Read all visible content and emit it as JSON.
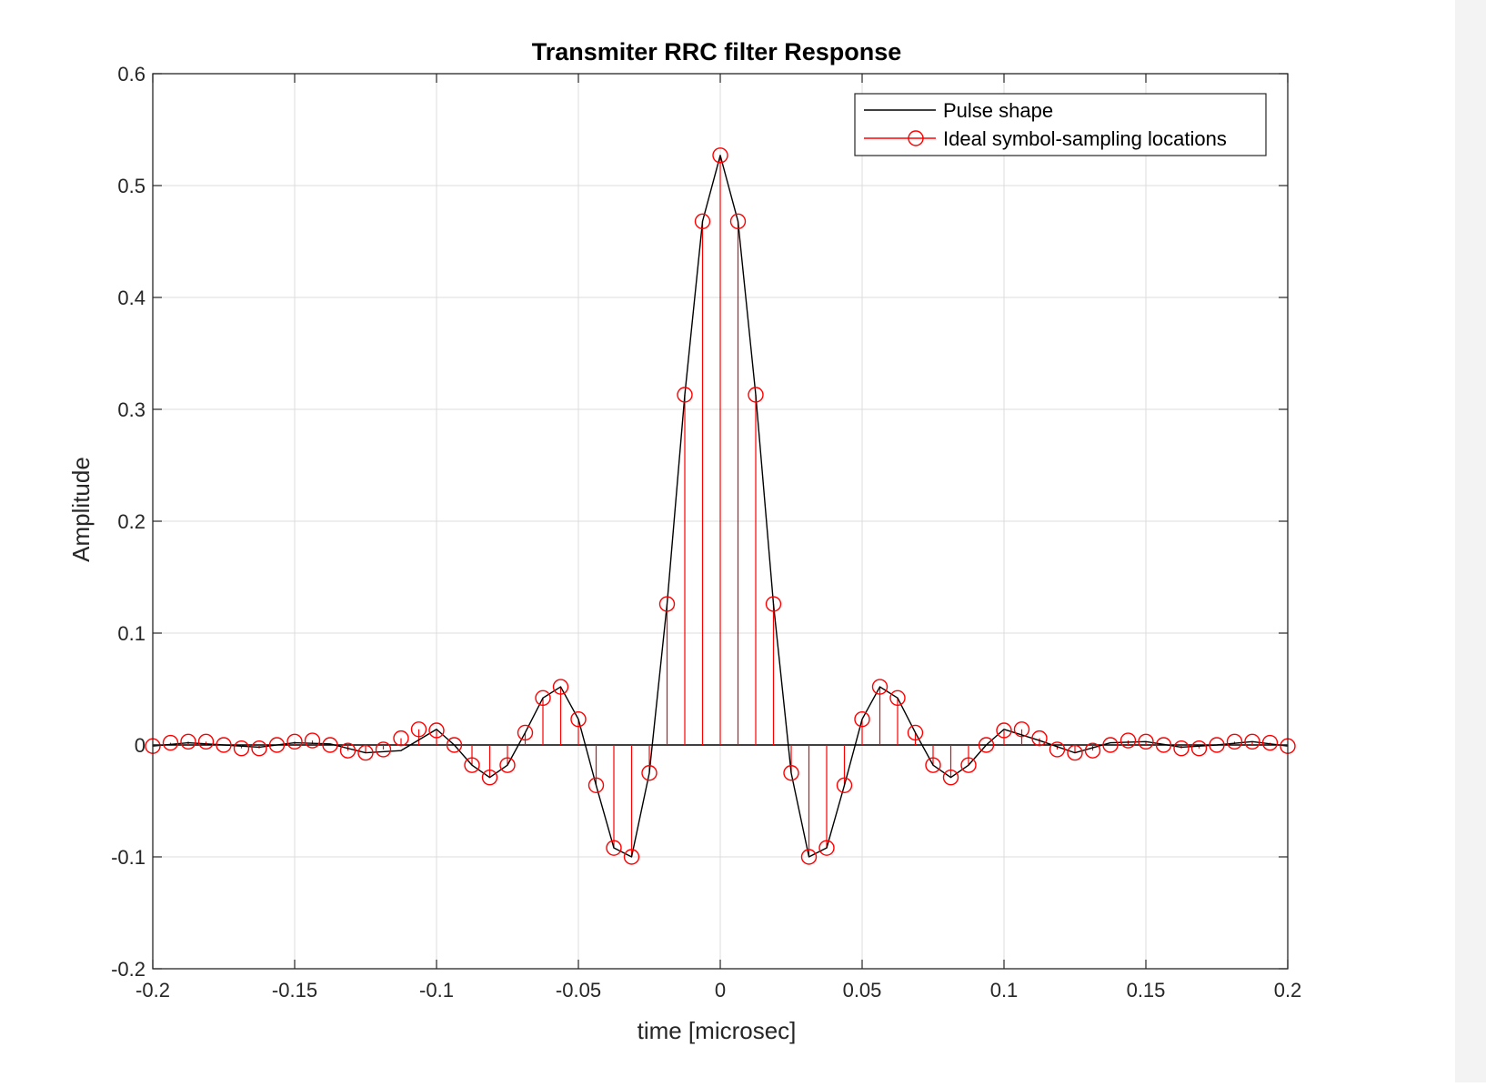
{
  "chart_data": {
    "type": "line",
    "title": "Transmiter RRC filter Response",
    "xlabel": "time [microsec]",
    "ylabel": "Amplitude",
    "xlim": [
      -0.2,
      0.2
    ],
    "ylim": [
      -0.2,
      0.6
    ],
    "xticks": [
      -0.2,
      -0.15,
      -0.1,
      -0.05,
      0,
      0.05,
      0.1,
      0.15,
      0.2
    ],
    "xtick_labels": [
      "-0.2",
      "-0.15",
      "-0.1",
      "-0.05",
      "0",
      "0.05",
      "0.1",
      "0.15",
      "0.2"
    ],
    "yticks": [
      -0.2,
      -0.1,
      0,
      0.1,
      0.2,
      0.3,
      0.4,
      0.5,
      0.6
    ],
    "ytick_labels": [
      "-0.2",
      "-0.1",
      "0",
      "0.1",
      "0.2",
      "0.3",
      "0.4",
      "0.5",
      "0.6"
    ],
    "grid": true,
    "legend_position": "top-right",
    "colors": {
      "pulse": "#000000",
      "samples": "#ff0000",
      "grid": "#dcdcdc",
      "axis": "#262626"
    },
    "series": [
      {
        "name": "Pulse shape",
        "style": "line",
        "x": [
          -0.2,
          -0.1875,
          -0.175,
          -0.1625,
          -0.15,
          -0.1375,
          -0.125,
          -0.1125,
          -0.1,
          -0.09375,
          -0.0875,
          -0.08125,
          -0.075,
          -0.06875,
          -0.0625,
          -0.05625,
          -0.05,
          -0.04375,
          -0.0375,
          -0.03125,
          -0.025,
          -0.01875,
          -0.0125,
          -0.00625,
          0,
          0.00625,
          0.0125,
          0.01875,
          0.025,
          0.03125,
          0.0375,
          0.04375,
          0.05,
          0.05625,
          0.0625,
          0.06875,
          0.075,
          0.08125,
          0.0875,
          0.09375,
          0.1,
          0.1125,
          0.125,
          0.1375,
          0.15,
          0.1625,
          0.175,
          0.1875,
          0.2
        ],
        "y": [
          -0.001,
          0.002,
          0.0,
          -0.002,
          0.002,
          0.001,
          -0.007,
          -0.005,
          0.014,
          0.0,
          -0.018,
          -0.029,
          -0.018,
          0.011,
          0.042,
          0.052,
          0.023,
          -0.036,
          -0.092,
          -0.1,
          -0.025,
          0.126,
          0.313,
          0.468,
          0.527,
          0.468,
          0.313,
          0.126,
          -0.025,
          -0.1,
          -0.092,
          -0.036,
          0.023,
          0.052,
          0.042,
          0.011,
          -0.018,
          -0.029,
          -0.018,
          0.0,
          0.014,
          0.004,
          -0.007,
          0.002,
          0.003,
          -0.002,
          0.0,
          0.003,
          -0.001
        ]
      },
      {
        "name": "Ideal symbol-sampling locations",
        "style": "stem",
        "x": [
          -0.2,
          -0.19375,
          -0.1875,
          -0.18125,
          -0.175,
          -0.16875,
          -0.1625,
          -0.15625,
          -0.15,
          -0.14375,
          -0.1375,
          -0.13125,
          -0.125,
          -0.11875,
          -0.1125,
          -0.10625,
          -0.1,
          -0.09375,
          -0.0875,
          -0.08125,
          -0.075,
          -0.06875,
          -0.0625,
          -0.05625,
          -0.05,
          -0.04375,
          -0.0375,
          -0.03125,
          -0.025,
          -0.01875,
          -0.0125,
          -0.00625,
          0,
          0.00625,
          0.0125,
          0.01875,
          0.025,
          0.03125,
          0.0375,
          0.04375,
          0.05,
          0.05625,
          0.0625,
          0.06875,
          0.075,
          0.08125,
          0.0875,
          0.09375,
          0.1,
          0.10625,
          0.1125,
          0.11875,
          0.125,
          0.13125,
          0.1375,
          0.14375,
          0.15,
          0.15625,
          0.1625,
          0.16875,
          0.175,
          0.18125,
          0.1875,
          0.19375,
          0.2
        ],
        "y": [
          -0.001,
          0.002,
          0.003,
          0.003,
          0.0,
          -0.003,
          -0.003,
          0.0,
          0.003,
          0.004,
          0.0,
          -0.005,
          -0.007,
          -0.004,
          0.006,
          0.014,
          0.013,
          0.0,
          -0.018,
          -0.029,
          -0.018,
          0.011,
          0.042,
          0.052,
          0.023,
          -0.036,
          -0.092,
          -0.1,
          -0.025,
          0.126,
          0.313,
          0.468,
          0.527,
          0.468,
          0.313,
          0.126,
          -0.025,
          -0.1,
          -0.092,
          -0.036,
          0.023,
          0.052,
          0.042,
          0.011,
          -0.018,
          -0.029,
          -0.018,
          0.0,
          0.013,
          0.014,
          0.006,
          -0.004,
          -0.007,
          -0.005,
          0.0,
          0.004,
          0.003,
          0.0,
          -0.003,
          -0.003,
          0.0,
          0.003,
          0.003,
          0.002,
          -0.001
        ]
      }
    ]
  }
}
